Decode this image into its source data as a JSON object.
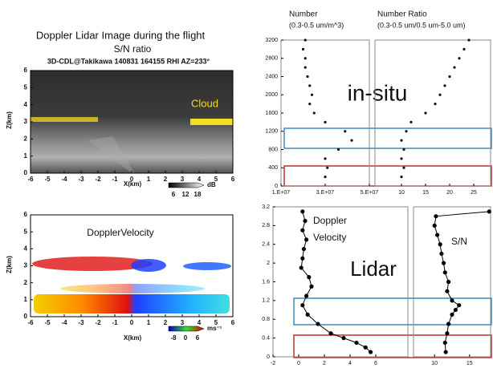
{
  "heading": "Doppler Lidar Image during the flight",
  "chart_data": [
    {
      "type": "image",
      "title": "S/N ratio",
      "subtitle": "3D-CDL@Takikawa 140831 164155 RHI AZ=233°",
      "annotation": "Cloud",
      "xlabel": "X(km)",
      "ylabel": "Z(km)",
      "xlim": [
        -6,
        6
      ],
      "xticks": [
        -6,
        -5,
        -4,
        -3,
        -2,
        -1,
        0,
        1,
        2,
        3,
        4,
        5,
        6
      ],
      "ylim": [
        0,
        6
      ],
      "yticks": [
        0,
        1,
        2,
        3,
        4,
        5,
        6
      ],
      "colorbar": {
        "label": "dB",
        "ticks": [
          6,
          12,
          18
        ]
      }
    },
    {
      "type": "image",
      "title": "DopplerVelocity",
      "xlabel": "X(km)",
      "ylabel": "Z(km)",
      "xlim": [
        -6,
        6
      ],
      "xticks": [
        -6,
        -5,
        -4,
        -3,
        -2,
        -1,
        0,
        1,
        2,
        3,
        4,
        5,
        6
      ],
      "ylim": [
        0,
        6
      ],
      "yticks": [
        0,
        1,
        2,
        3,
        4,
        5,
        6
      ],
      "colorbar": {
        "label": "ms⁻¹",
        "ticks": [
          -8,
          0,
          6
        ]
      }
    },
    {
      "type": "scatter",
      "title": "Number",
      "subtitle": "(0.3-0.5 um/m^3)",
      "annotation": "in-situ",
      "color": "#111111",
      "xlim": [
        10000000,
        50000000
      ],
      "xticks": [
        {
          "value": 10000000,
          "label": "1.E+07"
        },
        {
          "value": 30000000,
          "label": "3.E+07"
        },
        {
          "value": 50000000,
          "label": "5.E+07"
        }
      ],
      "ylim": [
        0,
        3200
      ],
      "yticks": [
        0,
        400,
        800,
        1200,
        1600,
        2000,
        2400,
        2800,
        3200
      ],
      "x": [
        30000000,
        31000000,
        30000000,
        36000000,
        42000000,
        39000000,
        30000000,
        25000000,
        23000000,
        24000000,
        23000000,
        22000000,
        21000000,
        21000000,
        20000000,
        21000000
      ],
      "y": [
        200,
        400,
        600,
        800,
        1000,
        1200,
        1400,
        1600,
        1800,
        2000,
        2200,
        2400,
        2600,
        2800,
        3000,
        3200
      ]
    },
    {
      "type": "scatter",
      "title": "Number Ratio",
      "subtitle": "(0.3-0.5 um/0.5 um-5.0 um)",
      "color": "#111111",
      "xlim": [
        4.5,
        28.5
      ],
      "xticks": [
        10,
        15,
        20,
        25
      ],
      "ylim": [
        0,
        3200
      ],
      "x": [
        10,
        10.5,
        10,
        10.5,
        10,
        11,
        12,
        15,
        17,
        18,
        19,
        20,
        21,
        22,
        23,
        24
      ],
      "y": [
        200,
        400,
        600,
        800,
        1000,
        1200,
        1400,
        1600,
        1800,
        2000,
        2200,
        2400,
        2600,
        2800,
        3000,
        3200
      ]
    },
    {
      "type": "line",
      "title_lines": [
        "Doppler",
        "Velocity"
      ],
      "annotation": "Lidar",
      "color": "#000000",
      "xlim": [
        -2,
        8.5
      ],
      "xticks": [
        -2,
        0,
        2,
        4,
        6
      ],
      "ylim": [
        0,
        3.2
      ],
      "yticks": [
        0,
        0.4,
        0.8,
        1.2,
        1.6,
        2,
        2.4,
        2.8,
        3.2
      ],
      "x": [
        0.3,
        0.5,
        0.3,
        0.6,
        0.4,
        0.3,
        0.2,
        0.8,
        1.0,
        0.6,
        0.3,
        0.7,
        1.5,
        2.5,
        3.5,
        4.5,
        5.2,
        5.6
      ],
      "y": [
        3.1,
        2.9,
        2.7,
        2.5,
        2.3,
        2.1,
        1.9,
        1.7,
        1.5,
        1.3,
        1.1,
        0.9,
        0.7,
        0.5,
        0.4,
        0.3,
        0.2,
        0.1
      ]
    },
    {
      "type": "line",
      "title": "S/N",
      "color": "#000000",
      "xlim": [
        7,
        18
      ],
      "xticks": [
        10,
        15
      ],
      "ylim": [
        0,
        3.2
      ],
      "x": [
        17.8,
        10.2,
        10,
        10.4,
        10.8,
        11,
        11.3,
        11.5,
        12,
        11.8,
        12.5,
        13.5,
        13,
        12.5,
        12,
        11.8,
        11.5,
        11.6
      ],
      "y": [
        3.1,
        3.0,
        2.8,
        2.6,
        2.4,
        2.2,
        2.0,
        1.8,
        1.6,
        1.4,
        1.2,
        1.1,
        1.0,
        0.9,
        0.7,
        0.5,
        0.3,
        0.1
      ]
    }
  ]
}
